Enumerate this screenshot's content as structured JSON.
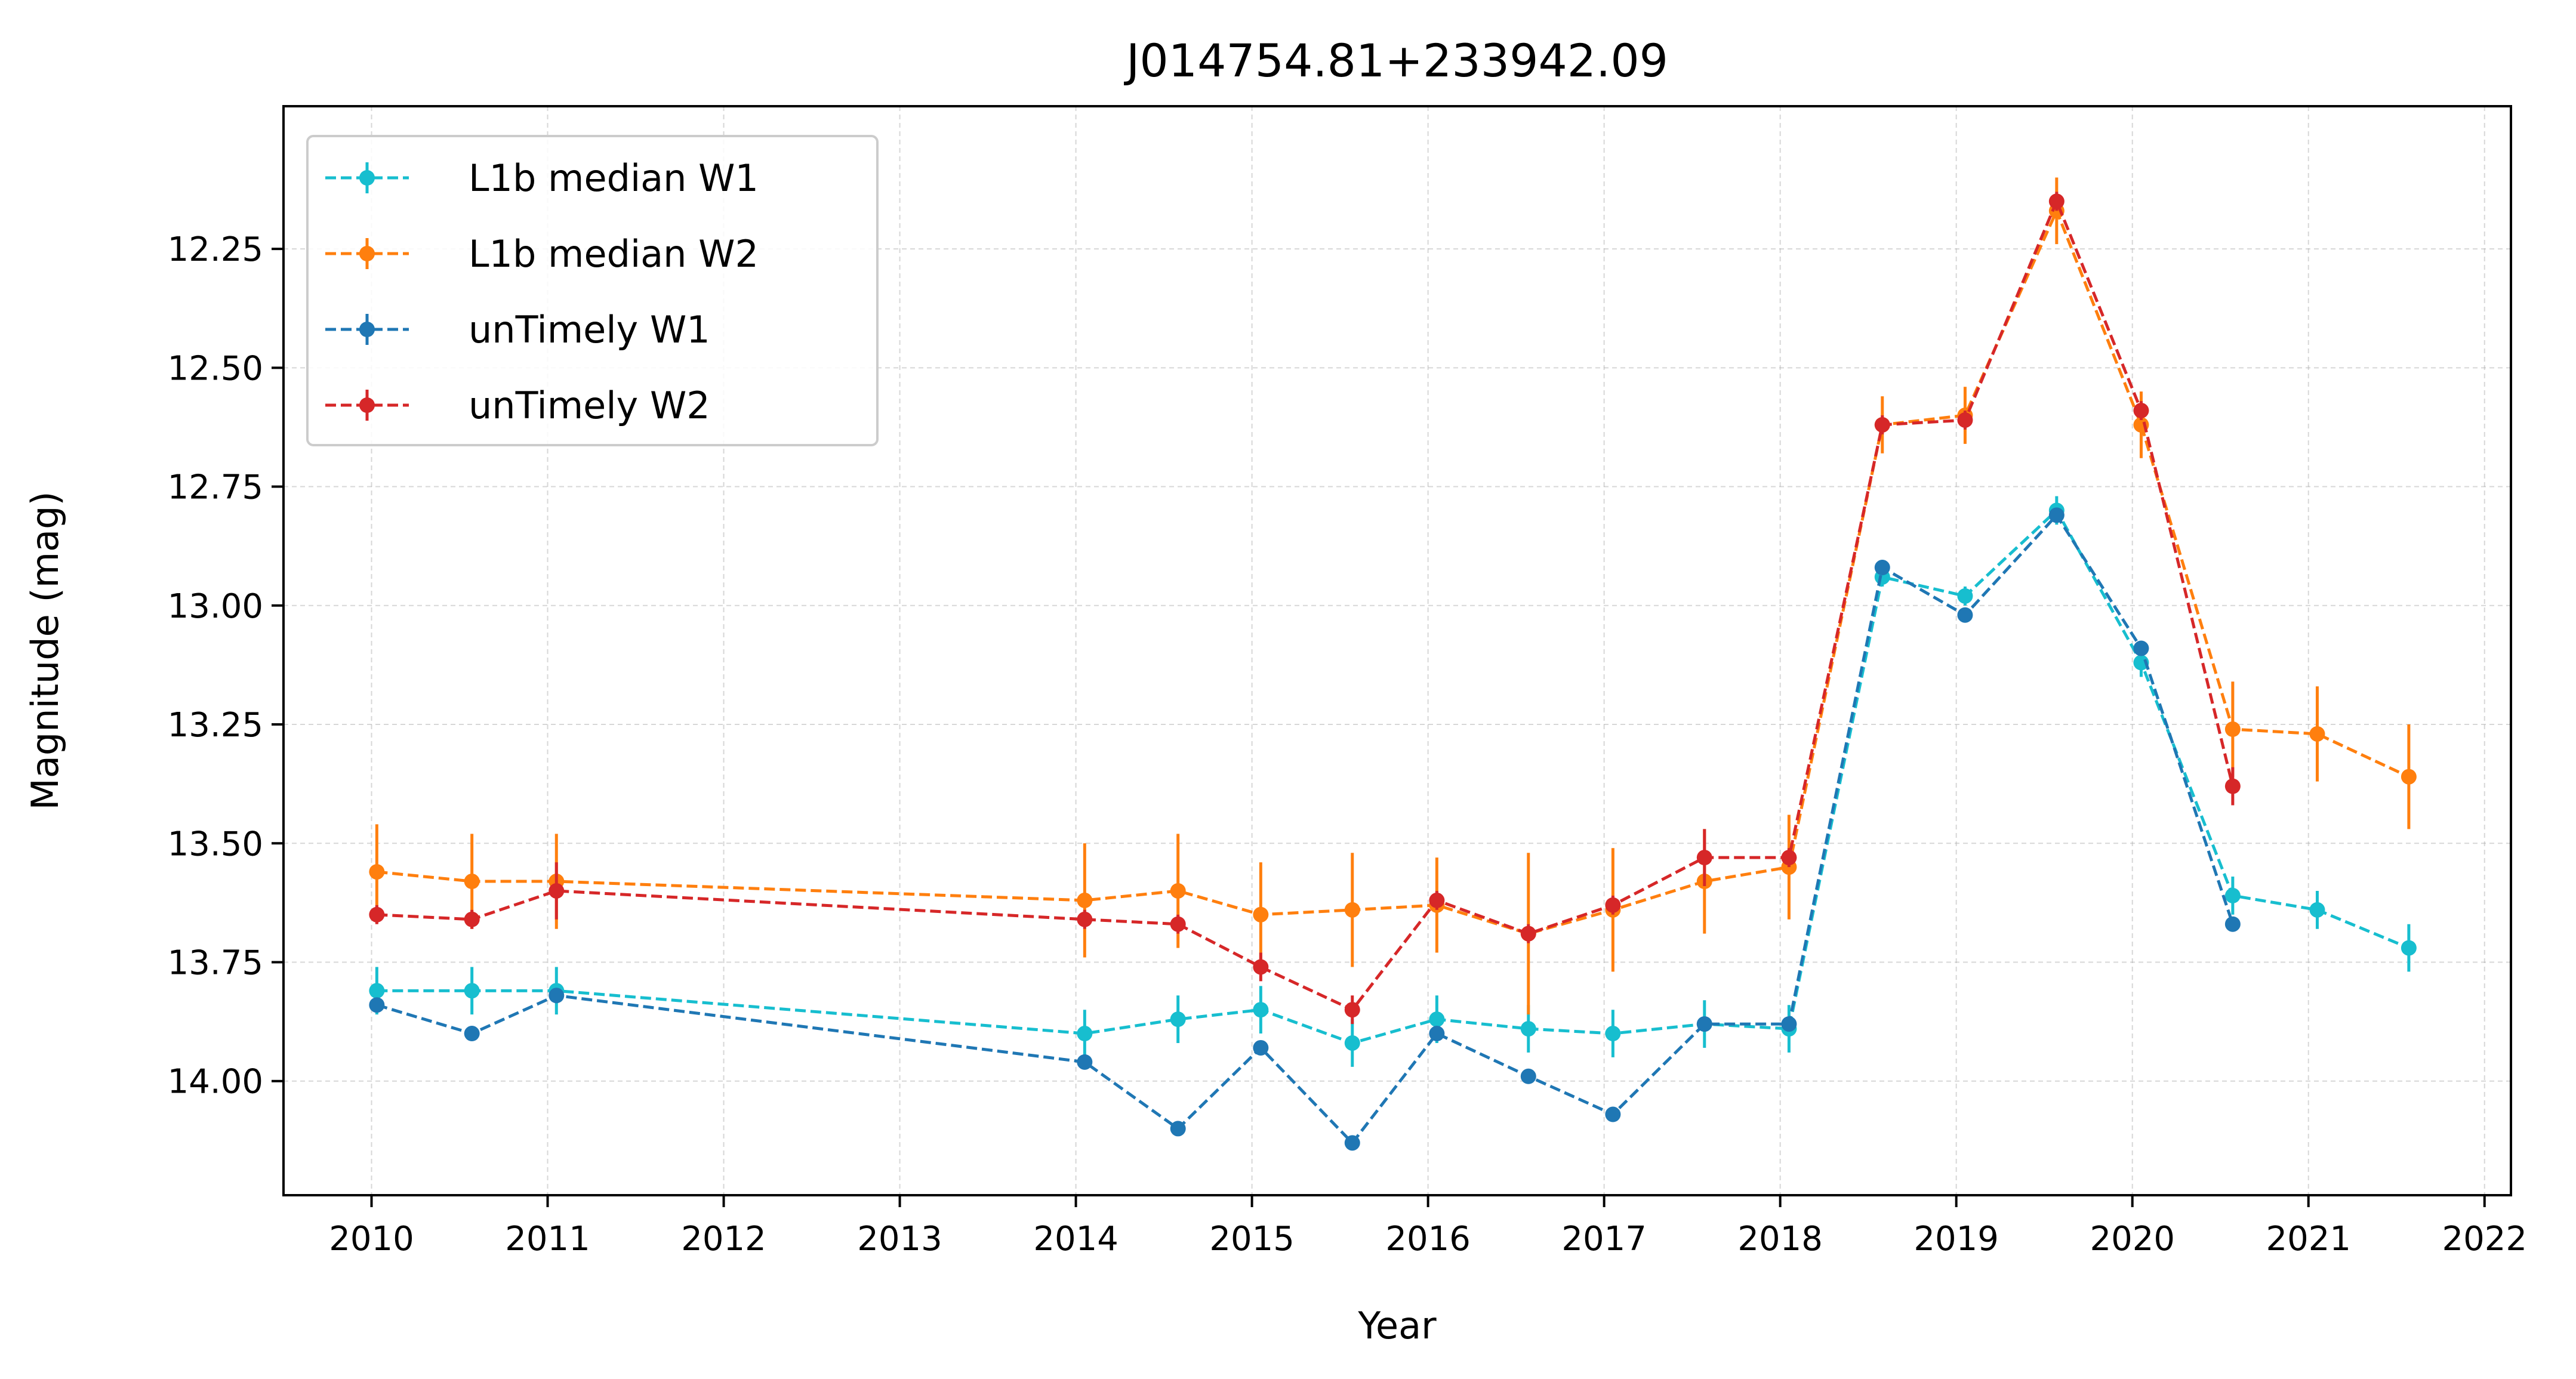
{
  "chart_data": {
    "type": "line",
    "title": "J014754.81+233942.09",
    "xlabel": "Year",
    "ylabel": "Magnitude (mag)",
    "xlim": [
      2009.5,
      2022.15
    ],
    "ylim": [
      14.24,
      11.95
    ],
    "y_inverted": true,
    "xticks": [
      "2010",
      "2011",
      "2012",
      "2013",
      "2014",
      "2015",
      "2016",
      "2017",
      "2018",
      "2019",
      "2020",
      "2021",
      "2022"
    ],
    "yticks": [
      "12.25",
      "12.50",
      "12.75",
      "13.00",
      "13.25",
      "13.50",
      "13.75",
      "14.00"
    ],
    "grid": true,
    "legend_position": "upper-left",
    "series": [
      {
        "name": "L1b median W1",
        "color": "#17becf",
        "x": [
          2010.03,
          2010.57,
          2011.05,
          2014.05,
          2014.58,
          2015.05,
          2015.57,
          2016.05,
          2016.57,
          2017.05,
          2017.57,
          2018.05,
          2018.58,
          2019.05,
          2019.57,
          2020.05,
          2020.57,
          2021.05,
          2021.57
        ],
        "y": [
          13.81,
          13.81,
          13.81,
          13.9,
          13.87,
          13.85,
          13.92,
          13.87,
          13.89,
          13.9,
          13.88,
          13.89,
          12.94,
          12.98,
          12.8,
          13.12,
          13.61,
          13.64,
          13.72
        ],
        "err": [
          0.05,
          0.05,
          0.05,
          0.05,
          0.05,
          0.05,
          0.05,
          0.05,
          0.05,
          0.05,
          0.05,
          0.05,
          0.02,
          0.02,
          0.03,
          0.03,
          0.04,
          0.04,
          0.05
        ]
      },
      {
        "name": "L1b median W2",
        "color": "#ff7f0e",
        "x": [
          2010.03,
          2010.57,
          2011.05,
          2014.05,
          2014.58,
          2015.05,
          2015.57,
          2016.05,
          2016.57,
          2017.05,
          2017.57,
          2018.05,
          2018.58,
          2019.05,
          2019.57,
          2020.05,
          2020.57,
          2021.05,
          2021.57
        ],
        "y": [
          13.56,
          13.58,
          13.58,
          13.62,
          13.6,
          13.65,
          13.64,
          13.63,
          13.69,
          13.64,
          13.58,
          13.55,
          12.62,
          12.6,
          12.17,
          12.62,
          13.26,
          13.27,
          13.36
        ],
        "err": [
          0.1,
          0.1,
          0.1,
          0.12,
          0.12,
          0.11,
          0.12,
          0.1,
          0.17,
          0.13,
          0.11,
          0.11,
          0.06,
          0.06,
          0.07,
          0.07,
          0.1,
          0.1,
          0.11
        ]
      },
      {
        "name": "unTimely W1",
        "color": "#1f77b4",
        "x": [
          2010.03,
          2010.57,
          2011.05,
          2014.05,
          2014.58,
          2015.05,
          2015.57,
          2016.05,
          2016.57,
          2017.05,
          2017.57,
          2018.05,
          2018.58,
          2019.05,
          2019.57,
          2020.05,
          2020.57
        ],
        "y": [
          13.84,
          13.9,
          13.82,
          13.96,
          14.1,
          13.93,
          14.13,
          13.9,
          13.99,
          14.07,
          13.88,
          13.88,
          12.92,
          13.02,
          12.81,
          13.09,
          13.67
        ],
        "err": [
          0.01,
          0.01,
          0.01,
          0.01,
          0.01,
          0.01,
          0.01,
          0.01,
          0.01,
          0.01,
          0.01,
          0.01,
          0.01,
          0.01,
          0.01,
          0.01,
          0.01
        ]
      },
      {
        "name": "unTimely W2",
        "color": "#d62728",
        "x": [
          2010.03,
          2010.57,
          2011.05,
          2014.05,
          2014.58,
          2015.05,
          2015.57,
          2016.05,
          2016.57,
          2017.05,
          2017.57,
          2018.05,
          2018.58,
          2019.05,
          2019.57,
          2020.05,
          2020.57
        ],
        "y": [
          13.65,
          13.66,
          13.6,
          13.66,
          13.67,
          13.76,
          13.85,
          13.62,
          13.69,
          13.63,
          13.53,
          13.53,
          12.62,
          12.61,
          12.15,
          12.59,
          13.38
        ],
        "err": [
          0.02,
          0.02,
          0.06,
          0.02,
          0.02,
          0.03,
          0.03,
          0.02,
          0.02,
          0.02,
          0.06,
          0.02,
          0.02,
          0.02,
          0.02,
          0.02,
          0.04
        ]
      }
    ]
  }
}
